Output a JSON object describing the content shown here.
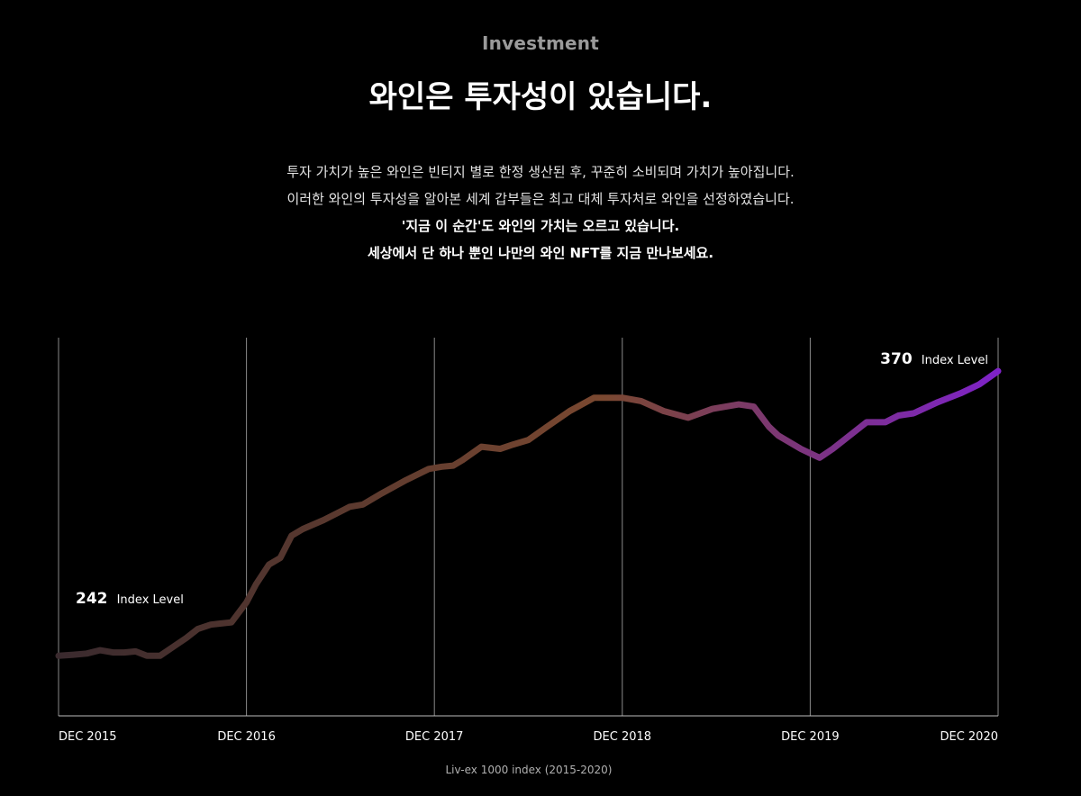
{
  "header": {
    "eyebrow": "Investment",
    "title": "와인은 투자성이 있습니다."
  },
  "intro": {
    "line1": "투자 가치가 높은 와인은 빈티지 별로 한정 생산된 후, 꾸준히 소비되며 가치가 높아집니다.",
    "line2": "이러한 와인의 투자성을 알아본 세계 갑부들은 최고 대체 투자처로 와인을 선정하였습니다.",
    "line3": "'지금 이 순간'도 와인의 가치는 오르고 있습니다.",
    "line4": "세상에서 단 하나 뿐인 나만의 와인 NFT를 지금 만나보세요."
  },
  "chart_data": {
    "type": "line",
    "caption": "Liv-ex 1000 index (2015-2020)",
    "xlabel": "",
    "ylabel": "",
    "x_ticks": [
      "DEC 2015",
      "DEC 2016",
      "DEC 2017",
      "DEC 2018",
      "DEC 2019",
      "DEC 2020"
    ],
    "xlim": [
      0,
      5
    ],
    "ylim": [
      215,
      385
    ],
    "grid": "vertical",
    "gradient_colors": [
      "#3a2a2e",
      "#7a4830",
      "#7e22c8"
    ],
    "annotations": [
      {
        "at": "start",
        "value": "242",
        "unit": "Index Level"
      },
      {
        "at": "end",
        "value": "370",
        "unit": "Index Level"
      }
    ],
    "series": [
      {
        "x": [
          0,
          0.08,
          0.15,
          0.22,
          0.29,
          0.35,
          0.41,
          0.47,
          0.54,
          0.61,
          0.68,
          0.74,
          0.81,
          0.86,
          0.92,
          1.0,
          1.05,
          1.12,
          1.18,
          1.24,
          1.3,
          1.41,
          1.55,
          1.62,
          1.72,
          1.85,
          1.97,
          2.04,
          2.1,
          2.15,
          2.25,
          2.35,
          2.42,
          2.5,
          2.6,
          2.72,
          2.85,
          3.0,
          3.1,
          3.22,
          3.35,
          3.48,
          3.62,
          3.7,
          3.78,
          3.83,
          3.95,
          4.05,
          4.12,
          4.3,
          4.4,
          4.47,
          4.55,
          4.68,
          4.8,
          4.9,
          5.0
        ],
        "y": [
          242,
          242.5,
          243,
          244.5,
          243.5,
          243.5,
          244,
          242,
          242,
          246,
          250,
          254,
          256,
          256.5,
          257,
          266,
          274,
          283,
          286,
          296,
          299,
          303,
          309,
          310,
          315,
          321,
          326,
          327,
          327.5,
          330,
          336,
          335,
          337,
          339,
          345,
          352,
          358,
          358,
          356.5,
          352,
          349,
          353,
          355,
          354,
          345,
          341,
          335,
          331,
          335,
          347,
          347,
          350,
          351,
          356,
          360,
          364,
          370
        ]
      }
    ]
  }
}
